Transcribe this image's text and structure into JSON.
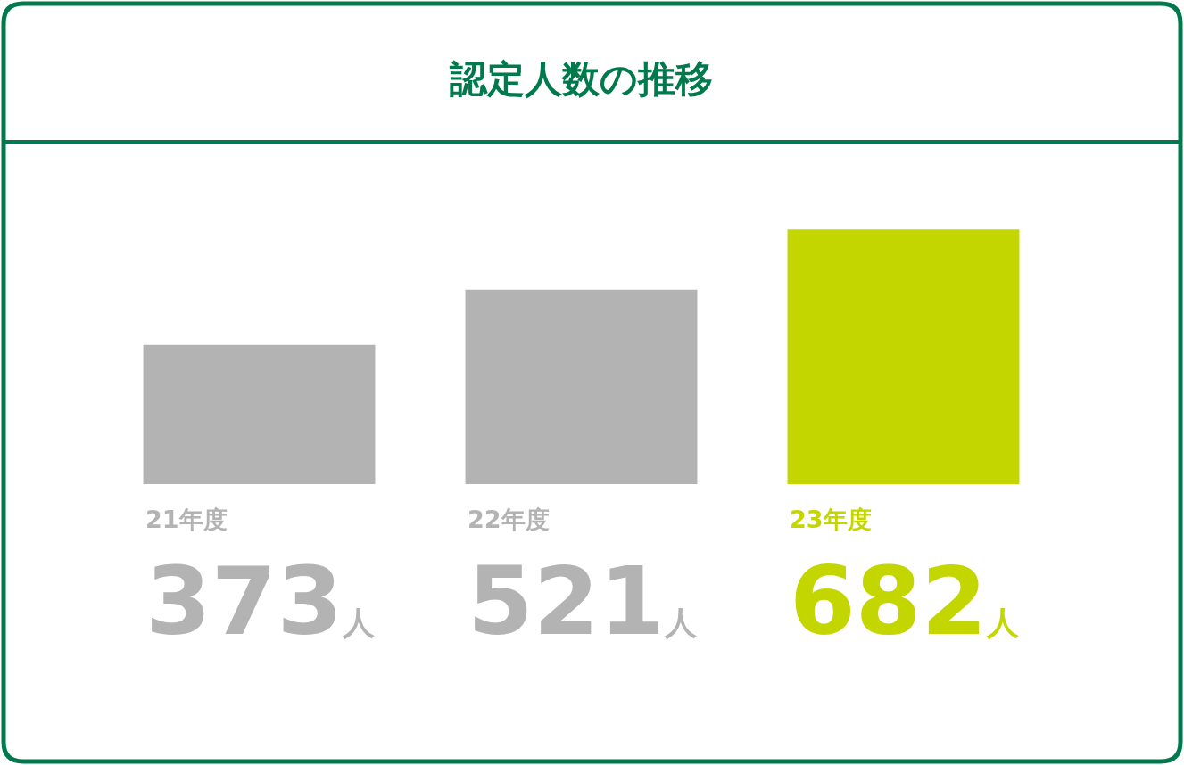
{
  "chart_data": {
    "type": "bar",
    "title": "認定人数の推移",
    "categories": [
      "21年度",
      "22年度",
      "23年度"
    ],
    "values": [
      373,
      521,
      682
    ],
    "colors": [
      "#b3b3b3",
      "#b3b3b3",
      "#c4d600"
    ],
    "value_labels": [
      "373人",
      "521人",
      "682人"
    ]
  }
}
